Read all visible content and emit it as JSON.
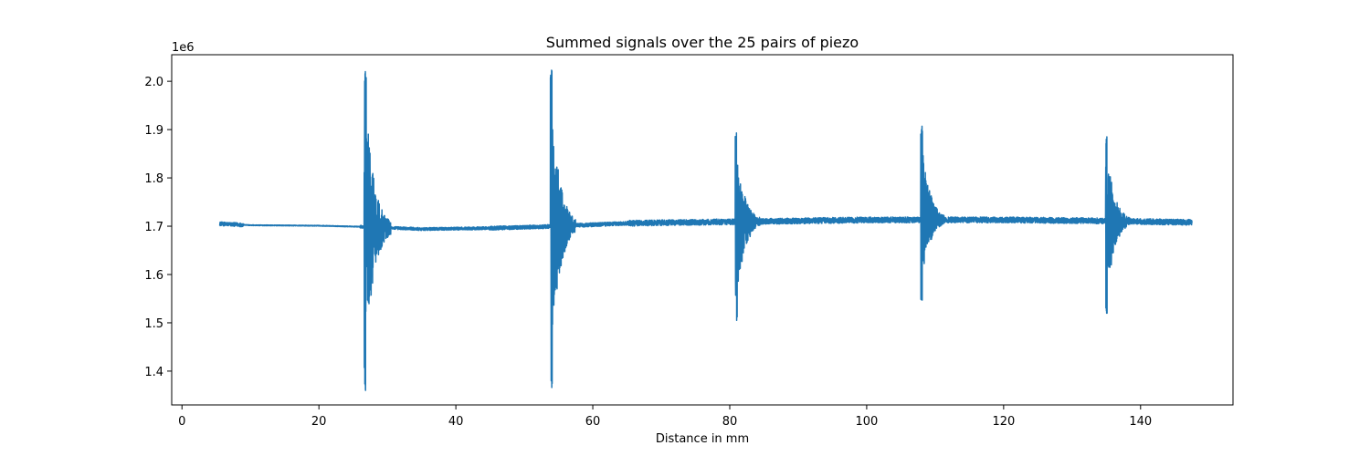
{
  "chart_data": {
    "type": "line",
    "title": "Summed signals over the 25 pairs of piezo",
    "xlabel": "Distance in mm",
    "ylabel": "",
    "y_offset_text": "1e6",
    "y_scale_factor": 1000000,
    "xlim": [
      -1.5,
      153.5
    ],
    "ylim": [
      1.33,
      2.055
    ],
    "x_ticks": [
      0,
      20,
      40,
      60,
      80,
      100,
      120,
      140
    ],
    "y_ticks": [
      1.4,
      1.5,
      1.6,
      1.7,
      1.8,
      1.9,
      2.0
    ],
    "x_tick_labels": [
      "0",
      "20",
      "40",
      "60",
      "80",
      "100",
      "120",
      "140"
    ],
    "y_tick_labels": [
      "1.4",
      "1.5",
      "1.6",
      "1.7",
      "1.8",
      "1.9",
      "2.0"
    ],
    "grid": false,
    "series": [
      {
        "color": "#1f77b4",
        "x_range": [
          5.5,
          147.5
        ],
        "baseline": [
          [
            5.5,
            1.705
          ],
          [
            10,
            1.702
          ],
          [
            20,
            1.701
          ],
          [
            26,
            1.699
          ],
          [
            35,
            1.694
          ],
          [
            45,
            1.696
          ],
          [
            53,
            1.699
          ],
          [
            65,
            1.706
          ],
          [
            80,
            1.709
          ],
          [
            90,
            1.711
          ],
          [
            100,
            1.713
          ],
          [
            107,
            1.713
          ],
          [
            120,
            1.713
          ],
          [
            134,
            1.711
          ],
          [
            147.5,
            1.708
          ]
        ],
        "bursts": [
          {
            "x_start": 26.6,
            "x_end": 30.5,
            "max": 2.02,
            "min": 1.36
          },
          {
            "x_start": 53.8,
            "x_end": 57.5,
            "max": 2.023,
            "min": 1.366
          },
          {
            "x_start": 80.8,
            "x_end": 84.5,
            "max": 1.893,
            "min": 1.505
          },
          {
            "x_start": 107.9,
            "x_end": 111.5,
            "max": 1.907,
            "min": 1.547
          },
          {
            "x_start": 134.9,
            "x_end": 138.5,
            "max": 1.885,
            "min": 1.52
          }
        ]
      }
    ]
  }
}
